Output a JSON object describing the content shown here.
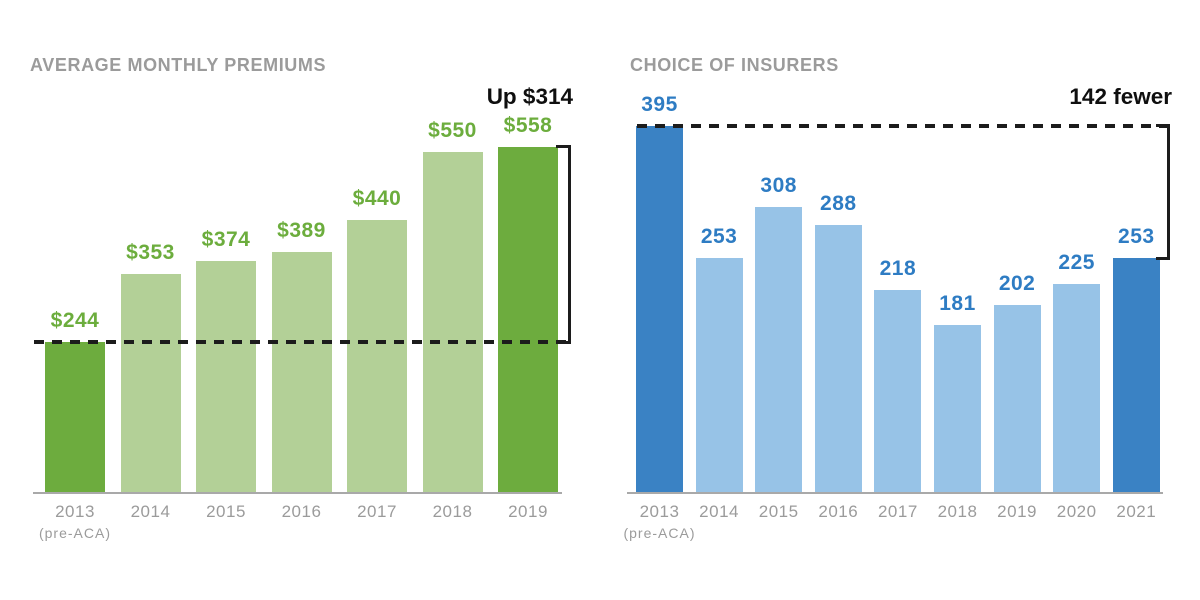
{
  "colors": {
    "background": "#ffffff",
    "title_gray": "#9b9b9b",
    "axis_label_gray": "#9b9b9b",
    "baseline_gray": "#a9a9a9",
    "annotation_black": "#0f0f0f",
    "dash_black": "#1c1c1c",
    "green_dark": "#6dac3e",
    "green_light": "#b3d097",
    "green_label": "#6cad3d",
    "blue_dark": "#3a82c4",
    "blue_light": "#97c3e7",
    "blue_label": "#2e7cc3"
  },
  "chart_data": [
    {
      "id": "premiums",
      "type": "bar",
      "title": "AVERAGE MONTHLY PREMIUMS",
      "annotation": "Up $314",
      "categories": [
        "2013",
        "2014",
        "2015",
        "2016",
        "2017",
        "2018",
        "2019"
      ],
      "category_sublabels": [
        "(pre-ACA)",
        "",
        "",
        "",
        "",
        "",
        ""
      ],
      "values": [
        244,
        353,
        374,
        389,
        440,
        550,
        558
      ],
      "value_labels": [
        "$244",
        "$353",
        "$374",
        "$389",
        "$440",
        "$550",
        "$558"
      ],
      "highlighted_indices": [
        0,
        6
      ],
      "reference_value": 244,
      "difference": 314,
      "ylim": [
        0,
        600
      ],
      "grid": false,
      "legend": false,
      "bar_color_light": "green_light",
      "bar_color_dark": "green_dark",
      "value_label_color": "green_label"
    },
    {
      "id": "insurers",
      "type": "bar",
      "title": "CHOICE OF INSURERS",
      "annotation": "142 fewer",
      "categories": [
        "2013",
        "2014",
        "2015",
        "2016",
        "2017",
        "2018",
        "2019",
        "2020",
        "2021"
      ],
      "category_sublabels": [
        "(pre-ACA)",
        "",
        "",
        "",
        "",
        "",
        "",
        "",
        ""
      ],
      "values": [
        395,
        253,
        308,
        288,
        218,
        181,
        202,
        225,
        253
      ],
      "value_labels": [
        "395",
        "253",
        "308",
        "288",
        "218",
        "181",
        "202",
        "225",
        "253"
      ],
      "highlighted_indices": [
        0,
        8
      ],
      "reference_value": 395,
      "difference": 142,
      "ylim": [
        0,
        430
      ],
      "grid": false,
      "legend": false,
      "bar_color_light": "blue_light",
      "bar_color_dark": "blue_dark",
      "value_label_color": "blue_label"
    }
  ]
}
